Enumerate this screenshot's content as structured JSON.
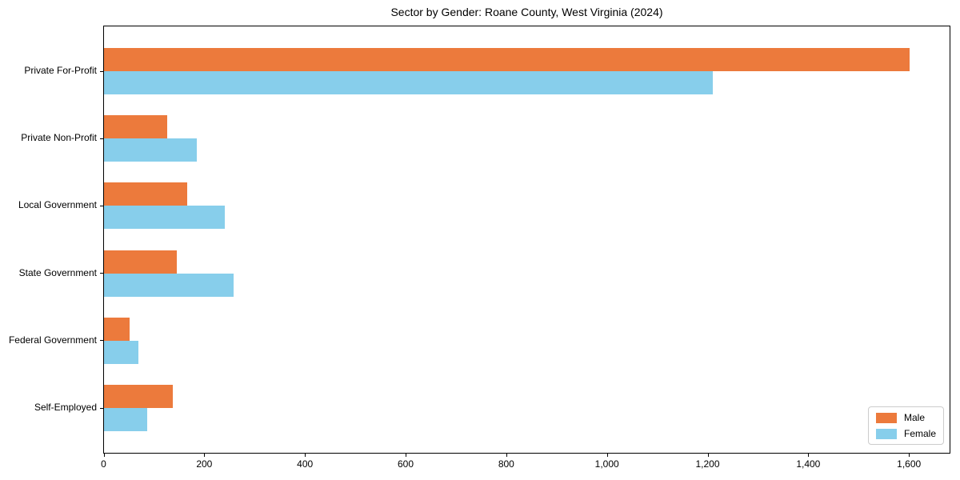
{
  "chart_data": {
    "type": "bar",
    "orientation": "horizontal",
    "title": "Sector by Gender: Roane County, West Virginia (2024)",
    "categories": [
      "Private For-Profit",
      "Private Non-Profit",
      "Local Government",
      "State Government",
      "Federal Government",
      "Self-Employed"
    ],
    "series": [
      {
        "name": "Male",
        "color": "#EC7A3C",
        "values": [
          1600,
          125,
          165,
          145,
          50,
          136
        ]
      },
      {
        "name": "Female",
        "color": "#87CEEB",
        "values": [
          1210,
          185,
          240,
          258,
          68,
          85
        ]
      }
    ],
    "xlabel": "",
    "ylabel": "",
    "xlim": [
      0,
      1680
    ],
    "xtick_values": [
      0,
      200,
      400,
      600,
      800,
      1000,
      1200,
      1400,
      1600
    ],
    "xtick_labels": [
      "0",
      "200",
      "400",
      "600",
      "800",
      "1,000",
      "1,200",
      "1,400",
      "1,600"
    ],
    "grid": false,
    "legend": {
      "position": "lower-right",
      "entries": [
        "Male",
        "Female"
      ]
    }
  }
}
